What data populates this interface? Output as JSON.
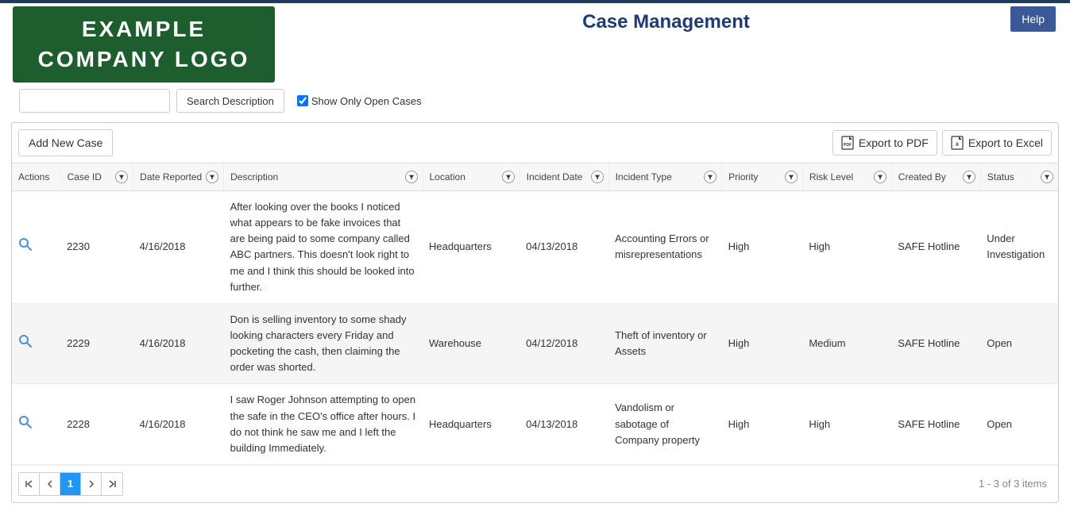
{
  "logo": {
    "line1": "EXAMPLE",
    "line2": "COMPANY LOGO"
  },
  "header": {
    "title": "Case Management",
    "help_label": "Help"
  },
  "search": {
    "value": "",
    "button_label": "Search Description",
    "show_open_label": "Show Only Open Cases",
    "show_open_checked": true
  },
  "toolbar": {
    "add_label": "Add New Case",
    "export_pdf_label": "Export to PDF",
    "export_excel_label": "Export to Excel"
  },
  "columns": [
    {
      "key": "actions",
      "label": "Actions",
      "filter": false
    },
    {
      "key": "case_id",
      "label": "Case ID",
      "filter": true
    },
    {
      "key": "date_reported",
      "label": "Date Reported",
      "filter": true
    },
    {
      "key": "description",
      "label": "Description",
      "filter": true
    },
    {
      "key": "location",
      "label": "Location",
      "filter": true
    },
    {
      "key": "incident_date",
      "label": "Incident Date",
      "filter": true
    },
    {
      "key": "incident_type",
      "label": "Incident Type",
      "filter": true
    },
    {
      "key": "priority",
      "label": "Priority",
      "filter": true
    },
    {
      "key": "risk_level",
      "label": "Risk Level",
      "filter": true
    },
    {
      "key": "created_by",
      "label": "Created By",
      "filter": true
    },
    {
      "key": "status",
      "label": "Status",
      "filter": true
    }
  ],
  "rows": [
    {
      "case_id": "2230",
      "date_reported": "4/16/2018",
      "description": "After looking over the books I noticed what appears to be fake invoices that are being paid to some company called ABC partners. This doesn't look right to me and I think this should be looked into further.",
      "location": "Headquarters",
      "incident_date": "04/13/2018",
      "incident_type": "Accounting Errors or misrepresentations",
      "priority": "High",
      "risk_level": "High",
      "created_by": "SAFE Hotline",
      "status": "Under Investigation"
    },
    {
      "case_id": "2229",
      "date_reported": "4/16/2018",
      "description": "Don is selling inventory to some shady looking characters every Friday and pocketing the cash, then claiming the order was shorted.",
      "location": "Warehouse",
      "incident_date": "04/12/2018",
      "incident_type": "Theft of inventory or Assets",
      "priority": "High",
      "risk_level": "Medium",
      "created_by": "SAFE Hotline",
      "status": "Open"
    },
    {
      "case_id": "2228",
      "date_reported": "4/16/2018",
      "description": "I saw Roger Johnson attempting to open the safe in the CEO's office after hours. I do not think he saw me and I left the building Immediately.",
      "location": "Headquarters",
      "incident_date": "04/13/2018",
      "incident_type": "Vandolism or sabotage of Company property",
      "priority": "High",
      "risk_level": "High",
      "created_by": "SAFE Hotline",
      "status": "Open"
    }
  ],
  "pager": {
    "current_page": "1",
    "status_text": "1 - 3 of 3 items"
  },
  "colors": {
    "header_text": "#1e3a7b",
    "logo_bg": "#1e5e2e",
    "help_bg": "#3b5998",
    "active_page_bg": "#2196f3",
    "row_alt_bg": "#f5f5f5"
  }
}
